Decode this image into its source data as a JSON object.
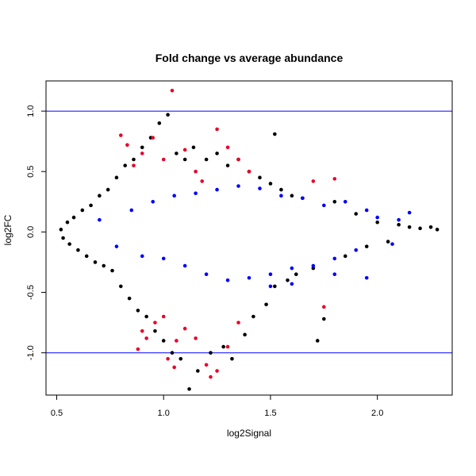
{
  "chart_data": {
    "type": "scatter",
    "title": "Fold change vs average abundance",
    "xlabel": "log2Signal",
    "ylabel": "log2FC",
    "xlim": [
      0.45,
      2.35
    ],
    "ylim": [
      -1.35,
      1.25
    ],
    "x_ticks": [
      {
        "value": 0.5,
        "label": "0.5"
      },
      {
        "value": 1.0,
        "label": "1.0"
      },
      {
        "value": 1.5,
        "label": "1.5"
      },
      {
        "value": 2.0,
        "label": "2.0"
      }
    ],
    "y_ticks": [
      {
        "value": -1.0,
        "label": "-1.0"
      },
      {
        "value": -0.5,
        "label": "-0.5"
      },
      {
        "value": 0.0,
        "label": "0.0"
      },
      {
        "value": 0.5,
        "label": "0.5"
      },
      {
        "value": 1.0,
        "label": "1.0"
      }
    ],
    "reference_lines": [
      {
        "axis": "y",
        "value": 1.0,
        "color": "#0000ff"
      },
      {
        "axis": "y",
        "value": -1.0,
        "color": "#0000ff"
      }
    ],
    "grid": false,
    "legend": "none",
    "colors": {
      "default": "#000000",
      "highlight_blue": "#0000ff",
      "highlight_red": "#e8002a"
    },
    "series": [
      {
        "color": "#000000",
        "points": [
          [
            0.52,
            0.02
          ],
          [
            0.53,
            -0.05
          ],
          [
            0.55,
            0.08
          ],
          [
            0.56,
            -0.1
          ],
          [
            0.58,
            0.12
          ],
          [
            0.6,
            -0.15
          ],
          [
            0.62,
            0.18
          ],
          [
            0.64,
            -0.2
          ],
          [
            0.66,
            0.22
          ],
          [
            0.68,
            -0.25
          ],
          [
            0.7,
            0.3
          ],
          [
            0.72,
            -0.28
          ],
          [
            0.74,
            0.35
          ],
          [
            0.76,
            -0.32
          ],
          [
            0.78,
            0.45
          ],
          [
            0.8,
            -0.45
          ],
          [
            0.82,
            0.55
          ],
          [
            0.84,
            -0.55
          ],
          [
            0.86,
            0.6
          ],
          [
            0.88,
            -0.65
          ],
          [
            0.9,
            0.7
          ],
          [
            0.92,
            -0.7
          ],
          [
            0.94,
            0.78
          ],
          [
            0.96,
            -0.82
          ],
          [
            0.98,
            0.9
          ],
          [
            1.0,
            -0.9
          ],
          [
            1.02,
            0.97
          ],
          [
            1.04,
            -1.0
          ],
          [
            1.06,
            0.65
          ],
          [
            1.08,
            -1.05
          ],
          [
            1.1,
            0.6
          ],
          [
            1.12,
            -1.3
          ],
          [
            1.14,
            0.7
          ],
          [
            1.16,
            -1.15
          ],
          [
            1.2,
            0.6
          ],
          [
            1.22,
            -1.0
          ],
          [
            1.25,
            0.65
          ],
          [
            1.28,
            -0.95
          ],
          [
            1.3,
            0.55
          ],
          [
            1.32,
            -1.05
          ],
          [
            1.35,
            0.6
          ],
          [
            1.38,
            -0.85
          ],
          [
            1.4,
            0.5
          ],
          [
            1.42,
            -0.7
          ],
          [
            1.45,
            0.45
          ],
          [
            1.48,
            -0.6
          ],
          [
            1.5,
            0.4
          ],
          [
            1.52,
            -0.45
          ],
          [
            1.55,
            0.35
          ],
          [
            1.58,
            -0.4
          ],
          [
            1.6,
            0.3
          ],
          [
            1.62,
            -0.35
          ],
          [
            1.65,
            0.28
          ],
          [
            1.7,
            -0.3
          ],
          [
            1.75,
            -0.72
          ],
          [
            1.8,
            0.25
          ],
          [
            1.85,
            -0.2
          ],
          [
            1.9,
            0.15
          ],
          [
            1.95,
            -0.12
          ],
          [
            2.0,
            0.08
          ],
          [
            2.05,
            -0.08
          ],
          [
            2.1,
            0.06
          ],
          [
            2.15,
            0.04
          ],
          [
            2.2,
            0.03
          ],
          [
            2.25,
            0.04
          ],
          [
            2.28,
            0.02
          ],
          [
            1.52,
            0.81
          ],
          [
            1.72,
            -0.9
          ]
        ]
      },
      {
        "color": "#0000ff",
        "points": [
          [
            0.7,
            0.1
          ],
          [
            0.78,
            -0.12
          ],
          [
            0.85,
            0.18
          ],
          [
            0.9,
            -0.2
          ],
          [
            0.95,
            0.25
          ],
          [
            1.0,
            -0.22
          ],
          [
            1.05,
            0.3
          ],
          [
            1.1,
            -0.28
          ],
          [
            1.15,
            0.32
          ],
          [
            1.2,
            -0.35
          ],
          [
            1.25,
            0.35
          ],
          [
            1.3,
            -0.4
          ],
          [
            1.35,
            0.38
          ],
          [
            1.4,
            -0.38
          ],
          [
            1.45,
            0.36
          ],
          [
            1.5,
            -0.35
          ],
          [
            1.55,
            0.3
          ],
          [
            1.6,
            -0.3
          ],
          [
            1.65,
            0.28
          ],
          [
            1.7,
            -0.28
          ],
          [
            1.75,
            0.22
          ],
          [
            1.8,
            -0.22
          ],
          [
            1.85,
            0.25
          ],
          [
            1.9,
            -0.15
          ],
          [
            1.95,
            0.18
          ],
          [
            2.0,
            0.12
          ],
          [
            2.07,
            -0.1
          ],
          [
            2.1,
            0.1
          ],
          [
            2.15,
            0.16
          ],
          [
            1.5,
            -0.45
          ],
          [
            1.6,
            -0.43
          ],
          [
            1.8,
            -0.35
          ],
          [
            1.95,
            -0.38
          ]
        ]
      },
      {
        "color": "#e8002a",
        "points": [
          [
            0.8,
            0.8
          ],
          [
            0.83,
            0.72
          ],
          [
            0.86,
            0.55
          ],
          [
            0.9,
            0.65
          ],
          [
            0.95,
            0.78
          ],
          [
            1.0,
            0.6
          ],
          [
            1.04,
            1.17
          ],
          [
            1.1,
            0.68
          ],
          [
            1.15,
            0.5
          ],
          [
            1.18,
            0.42
          ],
          [
            1.25,
            0.85
          ],
          [
            1.3,
            0.7
          ],
          [
            1.35,
            0.6
          ],
          [
            1.4,
            0.5
          ],
          [
            1.7,
            0.42
          ],
          [
            1.8,
            0.44
          ],
          [
            0.9,
            -0.82
          ],
          [
            0.92,
            -0.88
          ],
          [
            0.96,
            -0.75
          ],
          [
            1.0,
            -0.7
          ],
          [
            1.02,
            -1.05
          ],
          [
            1.06,
            -0.9
          ],
          [
            1.1,
            -0.8
          ],
          [
            1.15,
            -0.88
          ],
          [
            1.2,
            -1.1
          ],
          [
            1.22,
            -1.2
          ],
          [
            1.25,
            -1.15
          ],
          [
            1.3,
            -0.95
          ],
          [
            1.35,
            -0.75
          ],
          [
            1.75,
            -0.62
          ],
          [
            0.88,
            -0.97
          ],
          [
            1.05,
            -1.12
          ]
        ]
      }
    ]
  }
}
